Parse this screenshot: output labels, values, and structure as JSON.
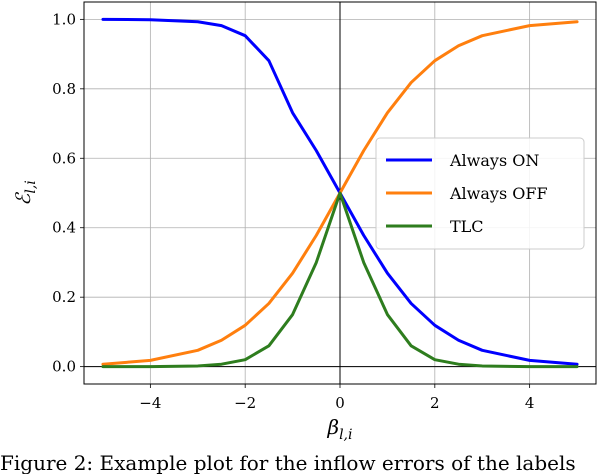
{
  "chart_data": {
    "type": "line",
    "xlabel": "β_{l,i}",
    "ylabel": "ℰ_{l,i}",
    "xlim": [
      -5.4,
      5.4
    ],
    "ylim": [
      -0.05,
      1.05
    ],
    "x_ticks": [
      -4,
      -2,
      0,
      2,
      4
    ],
    "x_tick_labels": [
      "−4",
      "−2",
      "0",
      "2",
      "4"
    ],
    "y_ticks": [
      0.0,
      0.2,
      0.4,
      0.6,
      0.8,
      1.0
    ],
    "y_tick_labels": [
      "0.0",
      "0.2",
      "0.4",
      "0.6",
      "0.8",
      "1.0"
    ],
    "grid": true,
    "reference_lines": {
      "horizontal_y": 0,
      "vertical_x": 0
    },
    "legend": {
      "position": "center-right",
      "entries": [
        "Always ON",
        "Always OFF",
        "TLC"
      ]
    },
    "series": [
      {
        "name": "Always ON",
        "color": "#0000ff",
        "x": [
          -5,
          -4,
          -3,
          -2.5,
          -2,
          -1.5,
          -1,
          -0.5,
          0,
          0.5,
          1,
          1.5,
          2,
          2.5,
          3,
          4,
          5
        ],
        "y": [
          1.0,
          0.999,
          0.993,
          0.982,
          0.953,
          0.881,
          0.731,
          0.622,
          0.5,
          0.378,
          0.269,
          0.182,
          0.119,
          0.076,
          0.047,
          0.018,
          0.007
        ]
      },
      {
        "name": "Always OFF",
        "color": "#ff7f0e",
        "x": [
          -5,
          -4,
          -3,
          -2.5,
          -2,
          -1.5,
          -1,
          -0.5,
          0,
          0.5,
          1,
          1.5,
          2,
          2.5,
          3,
          4,
          5
        ],
        "y": [
          0.007,
          0.018,
          0.047,
          0.076,
          0.119,
          0.182,
          0.269,
          0.378,
          0.5,
          0.622,
          0.731,
          0.818,
          0.881,
          0.924,
          0.953,
          0.982,
          0.993
        ]
      },
      {
        "name": "TLC",
        "color": "#2e7d1e",
        "x": [
          -5,
          -4,
          -3,
          -2.5,
          -2,
          -1.5,
          -1,
          -0.5,
          0,
          0.5,
          1,
          1.5,
          2,
          2.5,
          3,
          4,
          5
        ],
        "y": [
          0.0,
          0.0,
          0.002,
          0.007,
          0.02,
          0.06,
          0.15,
          0.3,
          0.5,
          0.3,
          0.15,
          0.06,
          0.02,
          0.007,
          0.002,
          0.0,
          0.0
        ]
      }
    ]
  },
  "caption": "Figure 2: Example plot for the inflow errors of the labels"
}
